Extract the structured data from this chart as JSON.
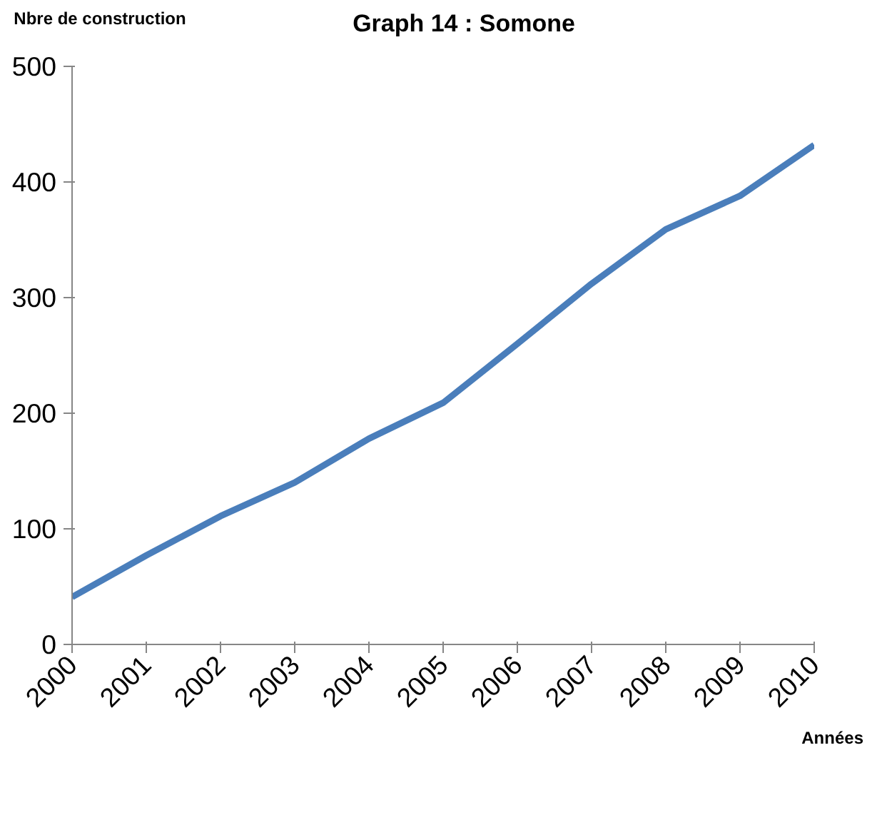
{
  "chart_data": {
    "type": "line",
    "title": "Graph 14 : Somone",
    "ylabel": "Nbre de construction",
    "xlabel": "Années",
    "x": [
      2000,
      2001,
      2002,
      2003,
      2004,
      2005,
      2006,
      2007,
      2008,
      2009,
      2010
    ],
    "series": [
      {
        "color": "#4a7ebb",
        "values": [
          41,
          77,
          111,
          140,
          178,
          209,
          260,
          312,
          359,
          388,
          432
        ]
      }
    ],
    "xlim": [
      2000,
      2010
    ],
    "xticks": [
      2000,
      2001,
      2002,
      2003,
      2004,
      2005,
      2006,
      2007,
      2008,
      2009,
      2010
    ],
    "ylim": [
      0,
      500
    ],
    "yticks": [
      0,
      100,
      200,
      300,
      400,
      500
    ],
    "grid": false,
    "marker": "none",
    "line_style": "solid"
  }
}
